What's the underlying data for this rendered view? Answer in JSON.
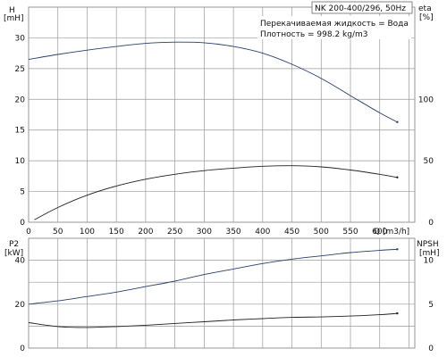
{
  "chart_data": [
    {
      "type": "line",
      "title": "NK 200-400/296, 50Hz",
      "annotations": [
        "Перекачиваемая жидкость = Вода",
        "Плотность = 998.2 kg/m3"
      ],
      "xlabel": "Q [m3/h]",
      "xlim": [
        0,
        660
      ],
      "x_ticks": [
        0,
        50,
        100,
        150,
        200,
        250,
        300,
        350,
        400,
        450,
        500,
        550,
        600
      ],
      "left_axis": {
        "label_top": "H",
        "label_unit": "[mH]",
        "ylim": [
          0,
          35
        ],
        "ticks": [
          0,
          5,
          10,
          15,
          20,
          25,
          30
        ]
      },
      "right_axis": {
        "label_top": "eta",
        "label_unit": "[%]",
        "ylim": [
          0,
          175
        ],
        "ticks": [
          0,
          50,
          100
        ]
      },
      "grid": true,
      "series": [
        {
          "axis": "left",
          "color": "#2b3f6e",
          "x": [
            0,
            50,
            100,
            150,
            200,
            250,
            300,
            350,
            400,
            450,
            500,
            550,
            600,
            630
          ],
          "y": [
            26.5,
            27.3,
            28.0,
            28.6,
            29.1,
            29.3,
            29.2,
            28.6,
            27.5,
            25.7,
            23.4,
            20.6,
            17.8,
            16.3
          ]
        },
        {
          "axis": "right",
          "color": "#222222",
          "x": [
            10,
            50,
            100,
            150,
            200,
            250,
            300,
            350,
            400,
            450,
            500,
            550,
            600,
            630
          ],
          "y": [
            2,
            12,
            22,
            29.5,
            35,
            39,
            42,
            44,
            45.5,
            46,
            45,
            42.5,
            39,
            36.5
          ]
        }
      ]
    },
    {
      "type": "line",
      "xlim": [
        0,
        660
      ],
      "left_axis": {
        "label_top": "P2",
        "label_unit": "[kW]",
        "ylim": [
          0,
          50
        ],
        "ticks": [
          0,
          20,
          40
        ]
      },
      "right_axis": {
        "label_top": "NPSH",
        "label_unit": "[mH]",
        "ylim": [
          0,
          12.5
        ],
        "ticks": [
          0,
          5,
          10
        ]
      },
      "grid": true,
      "series": [
        {
          "axis": "left",
          "color": "#2b3f6e",
          "x": [
            0,
            50,
            100,
            150,
            200,
            250,
            300,
            350,
            400,
            450,
            500,
            550,
            600,
            630
          ],
          "y": [
            20,
            21.5,
            23.5,
            25.5,
            28,
            30.5,
            33.5,
            36,
            38.5,
            40.5,
            42,
            43.5,
            44.5,
            45
          ]
        },
        {
          "axis": "right",
          "color": "#222222",
          "x": [
            0,
            50,
            100,
            150,
            200,
            250,
            300,
            350,
            400,
            450,
            500,
            550,
            600,
            630
          ],
          "y": [
            2.9,
            2.45,
            2.35,
            2.45,
            2.6,
            2.8,
            3.0,
            3.2,
            3.35,
            3.5,
            3.55,
            3.65,
            3.8,
            3.95
          ]
        }
      ]
    }
  ]
}
